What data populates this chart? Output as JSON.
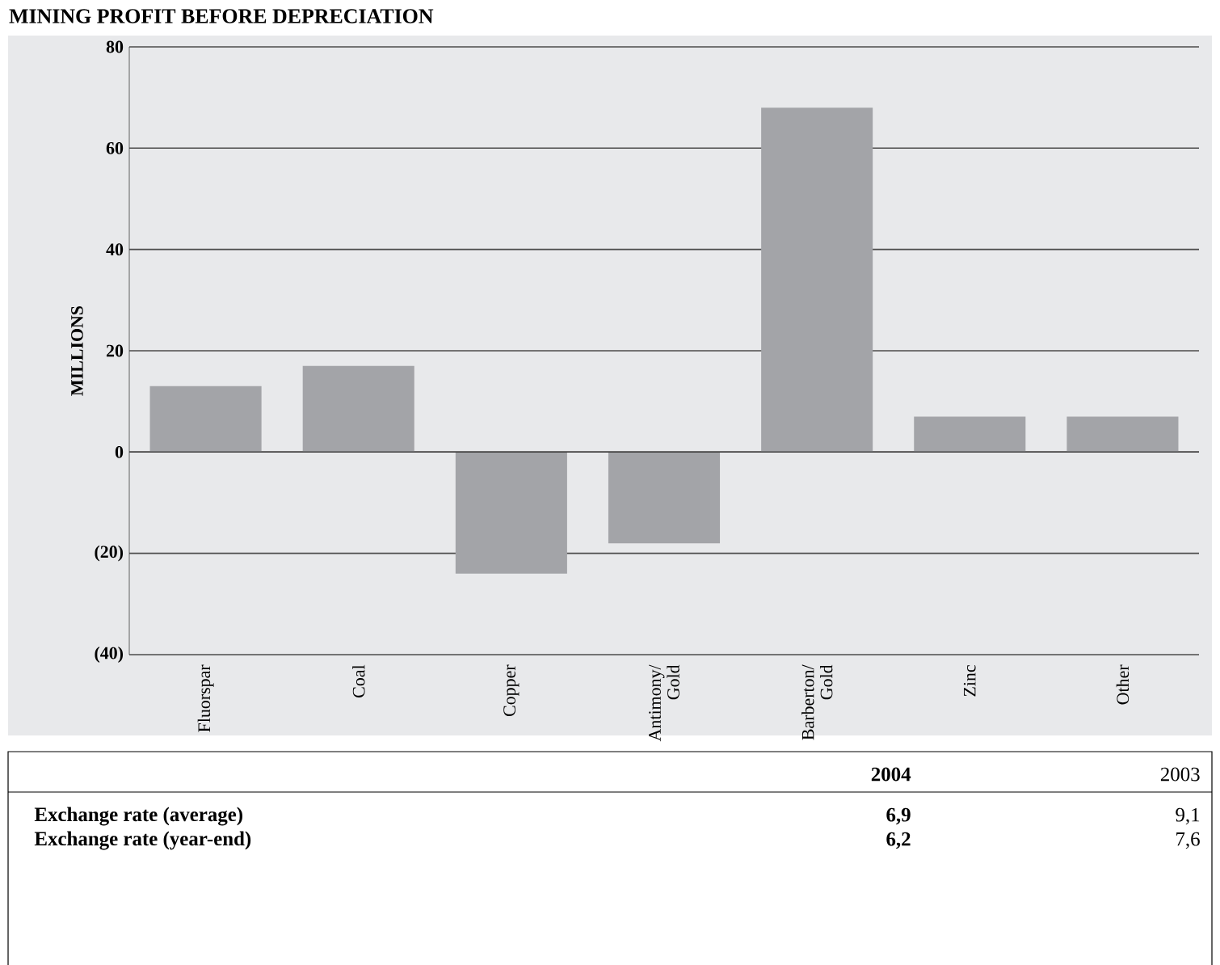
{
  "chart_data": {
    "type": "bar",
    "title": "MINING PROFIT BEFORE DEPRECIATION",
    "ylabel": "MILLIONS",
    "categories": [
      "Fluorspar",
      "Coal",
      "Copper",
      "Antimony/ Gold",
      "Barberton/ Gold",
      "Zinc",
      "Other"
    ],
    "values": [
      13,
      17,
      -24,
      -18,
      68,
      7,
      7
    ],
    "color": "#a3a4a8",
    "ylim": [
      -40,
      80
    ],
    "yticks": [
      {
        "value": -40,
        "label": "(40)"
      },
      {
        "value": -20,
        "label": "(20)"
      },
      0,
      20,
      40,
      60,
      80
    ],
    "grid": "y",
    "annotations": [
      "2004",
      "2003",
      "Exchange rate (average)",
      "6,9",
      "9,1",
      "Exchange rate (year-end)",
      "6,2",
      "7,6"
    ]
  }
}
